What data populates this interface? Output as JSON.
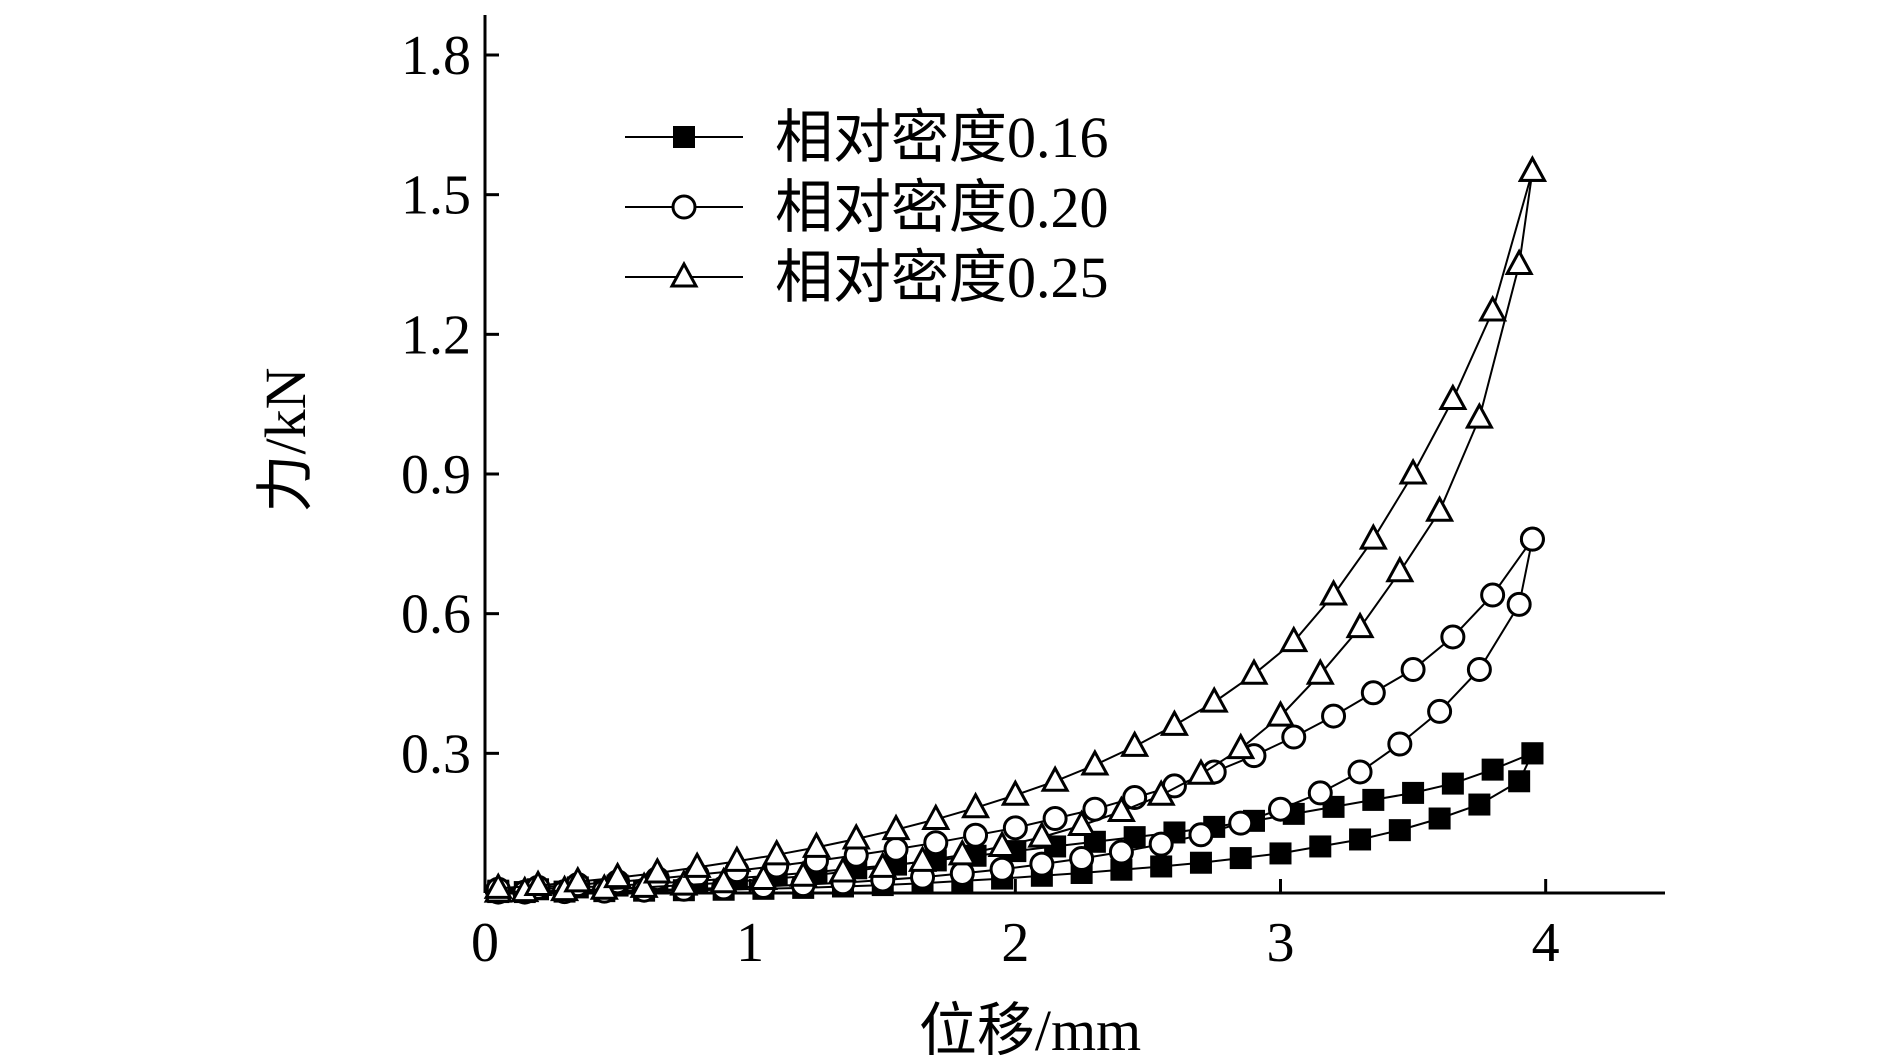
{
  "chart_data": {
    "type": "line",
    "title": "",
    "xlabel": "位移/mm",
    "ylabel": "力/kN",
    "xlim": [
      0,
      4.45
    ],
    "ylim": [
      0,
      1.8
    ],
    "xticks": [
      0,
      1,
      2,
      3,
      4
    ],
    "xtick_labels": [
      "0",
      "1",
      "2",
      "3",
      "4"
    ],
    "yticks": [
      0.3,
      0.6,
      0.9,
      1.2,
      1.5,
      1.8
    ],
    "ytick_labels": [
      "0.3",
      "0.6",
      "0.9",
      "1.2",
      "1.5",
      "1.8"
    ],
    "grid": false,
    "legend_position": "top-left",
    "series": [
      {
        "name": "相对密度0.16",
        "marker": "filled-square",
        "color": "#000000",
        "loading": {
          "x": [
            0.05,
            0.2,
            0.35,
            0.5,
            0.65,
            0.8,
            0.95,
            1.1,
            1.25,
            1.4,
            1.55,
            1.7,
            1.85,
            2.0,
            2.15,
            2.3,
            2.45,
            2.6,
            2.75,
            2.9,
            3.05,
            3.2,
            3.35,
            3.5,
            3.65,
            3.8,
            3.95
          ],
          "y": [
            0.005,
            0.008,
            0.012,
            0.016,
            0.021,
            0.026,
            0.032,
            0.038,
            0.045,
            0.053,
            0.061,
            0.07,
            0.08,
            0.09,
            0.1,
            0.11,
            0.12,
            0.13,
            0.142,
            0.155,
            0.17,
            0.185,
            0.2,
            0.215,
            0.235,
            0.265,
            0.3
          ]
        },
        "unloading": {
          "x": [
            3.95,
            3.9,
            3.75,
            3.6,
            3.45,
            3.3,
            3.15,
            3.0,
            2.85,
            2.7,
            2.55,
            2.4,
            2.25,
            2.1,
            1.95,
            1.8,
            1.65,
            1.5,
            1.35,
            1.2,
            1.05,
            0.9,
            0.75,
            0.6,
            0.45,
            0.3,
            0.15,
            0.05
          ],
          "y": [
            0.3,
            0.24,
            0.19,
            0.16,
            0.135,
            0.115,
            0.1,
            0.085,
            0.075,
            0.065,
            0.057,
            0.05,
            0.043,
            0.037,
            0.031,
            0.026,
            0.021,
            0.017,
            0.014,
            0.011,
            0.009,
            0.007,
            0.006,
            0.005,
            0.004,
            0.003,
            0.002,
            0.002
          ]
        }
      },
      {
        "name": "相对密度0.20",
        "marker": "open-circle",
        "color": "#000000",
        "loading": {
          "x": [
            0.05,
            0.2,
            0.35,
            0.5,
            0.65,
            0.8,
            0.95,
            1.1,
            1.25,
            1.4,
            1.55,
            1.7,
            1.85,
            2.0,
            2.15,
            2.3,
            2.45,
            2.6,
            2.75,
            2.9,
            3.05,
            3.2,
            3.35,
            3.5,
            3.65,
            3.8,
            3.95
          ],
          "y": [
            0.008,
            0.012,
            0.018,
            0.024,
            0.031,
            0.039,
            0.048,
            0.058,
            0.069,
            0.081,
            0.094,
            0.108,
            0.124,
            0.14,
            0.16,
            0.18,
            0.205,
            0.23,
            0.26,
            0.295,
            0.335,
            0.38,
            0.43,
            0.48,
            0.55,
            0.64,
            0.76
          ]
        },
        "unloading": {
          "x": [
            3.95,
            3.9,
            3.75,
            3.6,
            3.45,
            3.3,
            3.15,
            3.0,
            2.85,
            2.7,
            2.55,
            2.4,
            2.25,
            2.1,
            1.95,
            1.8,
            1.65,
            1.5,
            1.35,
            1.2,
            1.05,
            0.9,
            0.75,
            0.6,
            0.45,
            0.3,
            0.15,
            0.05
          ],
          "y": [
            0.76,
            0.62,
            0.48,
            0.39,
            0.32,
            0.26,
            0.215,
            0.18,
            0.15,
            0.125,
            0.105,
            0.088,
            0.074,
            0.062,
            0.051,
            0.042,
            0.034,
            0.028,
            0.022,
            0.018,
            0.014,
            0.011,
            0.008,
            0.006,
            0.004,
            0.003,
            0.002,
            0.002
          ]
        }
      },
      {
        "name": "相对密度0.25",
        "marker": "open-triangle",
        "color": "#000000",
        "loading": {
          "x": [
            0.05,
            0.2,
            0.35,
            0.5,
            0.65,
            0.8,
            0.95,
            1.1,
            1.25,
            1.4,
            1.55,
            1.7,
            1.85,
            2.0,
            2.15,
            2.3,
            2.45,
            2.6,
            2.75,
            2.9,
            3.05,
            3.2,
            3.35,
            3.5,
            3.65,
            3.8,
            3.95
          ],
          "y": [
            0.01,
            0.016,
            0.024,
            0.033,
            0.043,
            0.055,
            0.068,
            0.082,
            0.098,
            0.116,
            0.136,
            0.158,
            0.183,
            0.21,
            0.24,
            0.275,
            0.315,
            0.36,
            0.41,
            0.47,
            0.54,
            0.64,
            0.76,
            0.9,
            1.06,
            1.25,
            1.55
          ]
        },
        "unloading": {
          "x": [
            3.95,
            3.9,
            3.75,
            3.6,
            3.45,
            3.3,
            3.15,
            3.0,
            2.85,
            2.7,
            2.55,
            2.4,
            2.25,
            2.1,
            1.95,
            1.8,
            1.65,
            1.5,
            1.35,
            1.2,
            1.05,
            0.9,
            0.75,
            0.6,
            0.45,
            0.3,
            0.15,
            0.05
          ],
          "y": [
            1.55,
            1.35,
            1.02,
            0.82,
            0.69,
            0.57,
            0.47,
            0.38,
            0.31,
            0.255,
            0.21,
            0.175,
            0.145,
            0.12,
            0.1,
            0.082,
            0.068,
            0.055,
            0.045,
            0.036,
            0.029,
            0.022,
            0.017,
            0.012,
            0.008,
            0.005,
            0.003,
            0.002
          ]
        }
      }
    ]
  }
}
